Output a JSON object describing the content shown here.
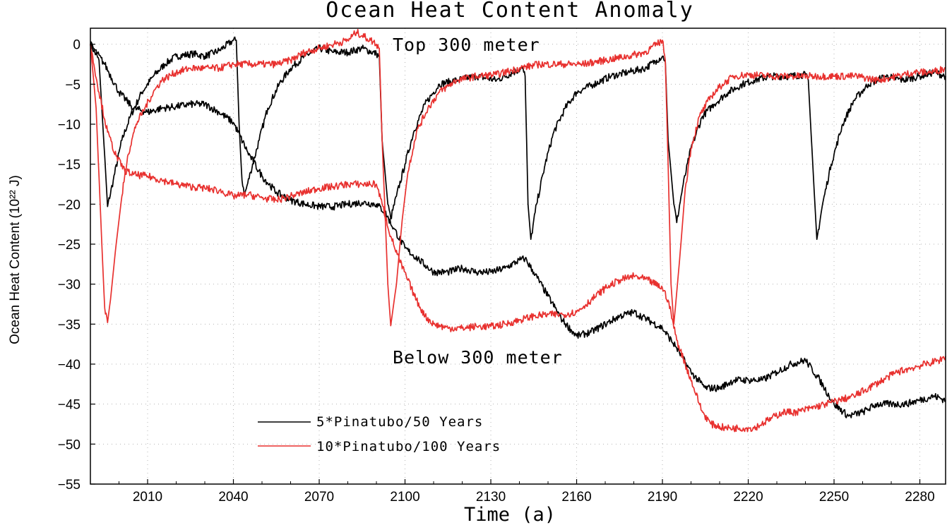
{
  "chart_data": {
    "type": "line",
    "title": "Ocean Heat Content Anomaly",
    "xlabel": "Time (a)",
    "ylabel": "Ocean Heat Content (10²² J)",
    "xlim": [
      1990,
      2289
    ],
    "ylim": [
      -55,
      2
    ],
    "x_ticks": [
      2010,
      2040,
      2070,
      2100,
      2130,
      2160,
      2190,
      2220,
      2250,
      2280
    ],
    "y_ticks": [
      0,
      -5,
      -10,
      -15,
      -20,
      -25,
      -30,
      -35,
      -40,
      -45,
      -50,
      -55
    ],
    "grid": true,
    "annotations": [
      "Top 300 meter",
      "Below 300 meter"
    ],
    "legend_position": "lower-left",
    "series": [
      {
        "name": "5*Pinatubo/50 Years",
        "color": "#000000",
        "component": "Top 300 meter",
        "points": [
          [
            1990,
            0
          ],
          [
            1993,
            -2
          ],
          [
            1995,
            -14
          ],
          [
            1996,
            -20.3
          ],
          [
            1998,
            -17
          ],
          [
            2001,
            -12
          ],
          [
            2004,
            -9
          ],
          [
            2008,
            -6
          ],
          [
            2012,
            -4
          ],
          [
            2016,
            -2.5
          ],
          [
            2020,
            -1.5
          ],
          [
            2026,
            -1.2
          ],
          [
            2030,
            -1.5
          ],
          [
            2035,
            -0.8
          ],
          [
            2040,
            0.5
          ],
          [
            2041,
            0.5
          ],
          [
            2042,
            -10
          ],
          [
            2043,
            -17
          ],
          [
            2044,
            -18.8
          ],
          [
            2046,
            -16
          ],
          [
            2049,
            -12
          ],
          [
            2052,
            -8
          ],
          [
            2056,
            -5
          ],
          [
            2060,
            -3
          ],
          [
            2065,
            -1.5
          ],
          [
            2070,
            -0.5
          ],
          [
            2075,
            -1
          ],
          [
            2080,
            -1
          ],
          [
            2085,
            -0.5
          ],
          [
            2090,
            -1.2
          ],
          [
            2091,
            -1.5
          ],
          [
            2092,
            -12
          ],
          [
            2094,
            -20
          ],
          [
            2095,
            -21.8
          ],
          [
            2097,
            -19
          ],
          [
            2100,
            -15
          ],
          [
            2103,
            -11
          ],
          [
            2107,
            -7.5
          ],
          [
            2112,
            -5
          ],
          [
            2118,
            -4.5
          ],
          [
            2125,
            -4
          ],
          [
            2132,
            -4.5
          ],
          [
            2138,
            -3.5
          ],
          [
            2141,
            -3
          ],
          [
            2142,
            -4
          ],
          [
            2143,
            -20
          ],
          [
            2144,
            -24.4
          ],
          [
            2146,
            -20
          ],
          [
            2149,
            -15
          ],
          [
            2152,
            -11
          ],
          [
            2156,
            -8
          ],
          [
            2160,
            -6
          ],
          [
            2166,
            -5
          ],
          [
            2172,
            -4
          ],
          [
            2178,
            -3.5
          ],
          [
            2184,
            -3
          ],
          [
            2188,
            -2
          ],
          [
            2190,
            -1.5
          ],
          [
            2191,
            -2
          ],
          [
            2192,
            -12
          ],
          [
            2194,
            -20
          ],
          [
            2195,
            -22.3
          ],
          [
            2197,
            -18
          ],
          [
            2200,
            -13
          ],
          [
            2204,
            -9
          ],
          [
            2208,
            -7.5
          ],
          [
            2213,
            -6
          ],
          [
            2218,
            -5
          ],
          [
            2222,
            -4.5
          ],
          [
            2228,
            -4
          ],
          [
            2234,
            -4
          ],
          [
            2240,
            -3.8
          ],
          [
            2241,
            -4.5
          ],
          [
            2243,
            -18
          ],
          [
            2244,
            -24.4
          ],
          [
            2246,
            -20
          ],
          [
            2249,
            -15
          ],
          [
            2253,
            -10
          ],
          [
            2257,
            -7
          ],
          [
            2262,
            -5
          ],
          [
            2268,
            -4
          ],
          [
            2274,
            -4.5
          ],
          [
            2280,
            -4
          ],
          [
            2285,
            -3.5
          ],
          [
            2289,
            -4
          ]
        ]
      },
      {
        "name": "5*Pinatubo/50 Years",
        "color": "#000000",
        "component": "Below 300 meter",
        "points": [
          [
            1990,
            0
          ],
          [
            1995,
            -2.5
          ],
          [
            2000,
            -6
          ],
          [
            2005,
            -8
          ],
          [
            2010,
            -8.5
          ],
          [
            2015,
            -8
          ],
          [
            2020,
            -7.8
          ],
          [
            2025,
            -7.5
          ],
          [
            2030,
            -7.5
          ],
          [
            2035,
            -8.5
          ],
          [
            2040,
            -9.8
          ],
          [
            2045,
            -13.5
          ],
          [
            2050,
            -16.5
          ],
          [
            2055,
            -18.5
          ],
          [
            2060,
            -19.5
          ],
          [
            2065,
            -20
          ],
          [
            2070,
            -20.3
          ],
          [
            2075,
            -20.3
          ],
          [
            2080,
            -20
          ],
          [
            2085,
            -19.8
          ],
          [
            2090,
            -20
          ],
          [
            2093,
            -21
          ],
          [
            2096,
            -23
          ],
          [
            2100,
            -25.5
          ],
          [
            2105,
            -27
          ],
          [
            2110,
            -28.5
          ],
          [
            2115,
            -28.5
          ],
          [
            2120,
            -28
          ],
          [
            2125,
            -28.5
          ],
          [
            2130,
            -28.5
          ],
          [
            2135,
            -28
          ],
          [
            2140,
            -27
          ],
          [
            2142,
            -26.8
          ],
          [
            2145,
            -28.5
          ],
          [
            2150,
            -31.5
          ],
          [
            2155,
            -34.5
          ],
          [
            2160,
            -36.5
          ],
          [
            2165,
            -36
          ],
          [
            2170,
            -35
          ],
          [
            2175,
            -34
          ],
          [
            2180,
            -33.5
          ],
          [
            2185,
            -34.5
          ],
          [
            2190,
            -35.5
          ],
          [
            2195,
            -38
          ],
          [
            2200,
            -41
          ],
          [
            2205,
            -43
          ],
          [
            2210,
            -43
          ],
          [
            2215,
            -42
          ],
          [
            2220,
            -42
          ],
          [
            2225,
            -42
          ],
          [
            2230,
            -41
          ],
          [
            2235,
            -40
          ],
          [
            2240,
            -39.5
          ],
          [
            2245,
            -42
          ],
          [
            2250,
            -45
          ],
          [
            2255,
            -46.5
          ],
          [
            2260,
            -46
          ],
          [
            2265,
            -45
          ],
          [
            2270,
            -45
          ],
          [
            2275,
            -45
          ],
          [
            2280,
            -44.5
          ],
          [
            2285,
            -44
          ],
          [
            2289,
            -44.5
          ]
        ]
      },
      {
        "name": "10*Pinatubo/100 Years",
        "color": "#e8312f",
        "component": "Top 300 meter",
        "points": [
          [
            1990,
            0
          ],
          [
            1992,
            -8
          ],
          [
            1994,
            -25
          ],
          [
            1995,
            -33
          ],
          [
            1996,
            -34.8
          ],
          [
            1997,
            -32
          ],
          [
            1999,
            -25
          ],
          [
            2001,
            -19
          ],
          [
            2003,
            -14
          ],
          [
            2006,
            -10
          ],
          [
            2009,
            -8
          ],
          [
            2012,
            -6
          ],
          [
            2015,
            -4.5
          ],
          [
            2020,
            -3.5
          ],
          [
            2025,
            -3
          ],
          [
            2030,
            -3
          ],
          [
            2035,
            -3
          ],
          [
            2040,
            -2.5
          ],
          [
            2045,
            -2.5
          ],
          [
            2050,
            -2.5
          ],
          [
            2055,
            -2.5
          ],
          [
            2060,
            -2
          ],
          [
            2065,
            -1
          ],
          [
            2070,
            -0.5
          ],
          [
            2075,
            0
          ],
          [
            2080,
            0.5
          ],
          [
            2083,
            1.5
          ],
          [
            2088,
            0.5
          ],
          [
            2090,
            0
          ],
          [
            2091,
            -0.5
          ],
          [
            2092,
            -12
          ],
          [
            2094,
            -30
          ],
          [
            2095,
            -35.2
          ],
          [
            2097,
            -30
          ],
          [
            2099,
            -22
          ],
          [
            2101,
            -16
          ],
          [
            2104,
            -11
          ],
          [
            2108,
            -8
          ],
          [
            2112,
            -6
          ],
          [
            2118,
            -4.5
          ],
          [
            2125,
            -4
          ],
          [
            2132,
            -3.8
          ],
          [
            2140,
            -3
          ],
          [
            2147,
            -2.5
          ],
          [
            2155,
            -2.5
          ],
          [
            2162,
            -2.5
          ],
          [
            2170,
            -2
          ],
          [
            2178,
            -1.5
          ],
          [
            2184,
            -1
          ],
          [
            2188,
            0
          ],
          [
            2190,
            0.5
          ],
          [
            2191,
            -2
          ],
          [
            2192,
            -15
          ],
          [
            2193,
            -30
          ],
          [
            2194,
            -35
          ],
          [
            2196,
            -27
          ],
          [
            2198,
            -18
          ],
          [
            2200,
            -13
          ],
          [
            2203,
            -9
          ],
          [
            2207,
            -6.5
          ],
          [
            2211,
            -5
          ],
          [
            2215,
            -4
          ],
          [
            2220,
            -3.8
          ],
          [
            2228,
            -4
          ],
          [
            2235,
            -4
          ],
          [
            2242,
            -4
          ],
          [
            2250,
            -4
          ],
          [
            2258,
            -4
          ],
          [
            2265,
            -4.5
          ],
          [
            2272,
            -4
          ],
          [
            2278,
            -3.5
          ],
          [
            2284,
            -3.5
          ],
          [
            2289,
            -3
          ]
        ]
      },
      {
        "name": "10*Pinatubo/100 Years",
        "color": "#e8312f",
        "component": "Below 300 meter",
        "points": [
          [
            1990,
            0
          ],
          [
            1993,
            -6
          ],
          [
            1996,
            -11
          ],
          [
            1999,
            -14
          ],
          [
            2002,
            -15.8
          ],
          [
            2005,
            -16.3
          ],
          [
            2010,
            -16.5
          ],
          [
            2015,
            -17
          ],
          [
            2020,
            -17.5
          ],
          [
            2025,
            -17.8
          ],
          [
            2030,
            -18
          ],
          [
            2035,
            -18.3
          ],
          [
            2040,
            -19
          ],
          [
            2045,
            -18.8
          ],
          [
            2050,
            -19.2
          ],
          [
            2055,
            -19.5
          ],
          [
            2060,
            -19
          ],
          [
            2065,
            -18.5
          ],
          [
            2070,
            -18
          ],
          [
            2075,
            -17.8
          ],
          [
            2080,
            -17.5
          ],
          [
            2085,
            -17.5
          ],
          [
            2090,
            -17.5
          ],
          [
            2092,
            -20
          ],
          [
            2095,
            -24
          ],
          [
            2098,
            -27
          ],
          [
            2101,
            -29.5
          ],
          [
            2104,
            -32
          ],
          [
            2107,
            -34
          ],
          [
            2110,
            -35
          ],
          [
            2115,
            -35.5
          ],
          [
            2120,
            -35.5
          ],
          [
            2125,
            -35.3
          ],
          [
            2130,
            -35.3
          ],
          [
            2135,
            -35
          ],
          [
            2140,
            -34.5
          ],
          [
            2145,
            -34
          ],
          [
            2150,
            -33.8
          ],
          [
            2155,
            -33.8
          ],
          [
            2160,
            -33.5
          ],
          [
            2165,
            -32
          ],
          [
            2170,
            -30.5
          ],
          [
            2175,
            -29.5
          ],
          [
            2180,
            -29
          ],
          [
            2185,
            -29.5
          ],
          [
            2190,
            -30.5
          ],
          [
            2192,
            -32
          ],
          [
            2195,
            -37
          ],
          [
            2198,
            -40
          ],
          [
            2201,
            -43
          ],
          [
            2204,
            -46
          ],
          [
            2207,
            -47.5
          ],
          [
            2212,
            -48
          ],
          [
            2217,
            -48
          ],
          [
            2222,
            -48
          ],
          [
            2227,
            -47
          ],
          [
            2232,
            -46
          ],
          [
            2237,
            -46
          ],
          [
            2242,
            -45.5
          ],
          [
            2247,
            -45
          ],
          [
            2252,
            -44.5
          ],
          [
            2257,
            -44
          ],
          [
            2262,
            -43
          ],
          [
            2267,
            -42
          ],
          [
            2272,
            -41
          ],
          [
            2277,
            -40.5
          ],
          [
            2282,
            -40
          ],
          [
            2287,
            -39.5
          ],
          [
            2289,
            -39
          ]
        ]
      }
    ]
  }
}
